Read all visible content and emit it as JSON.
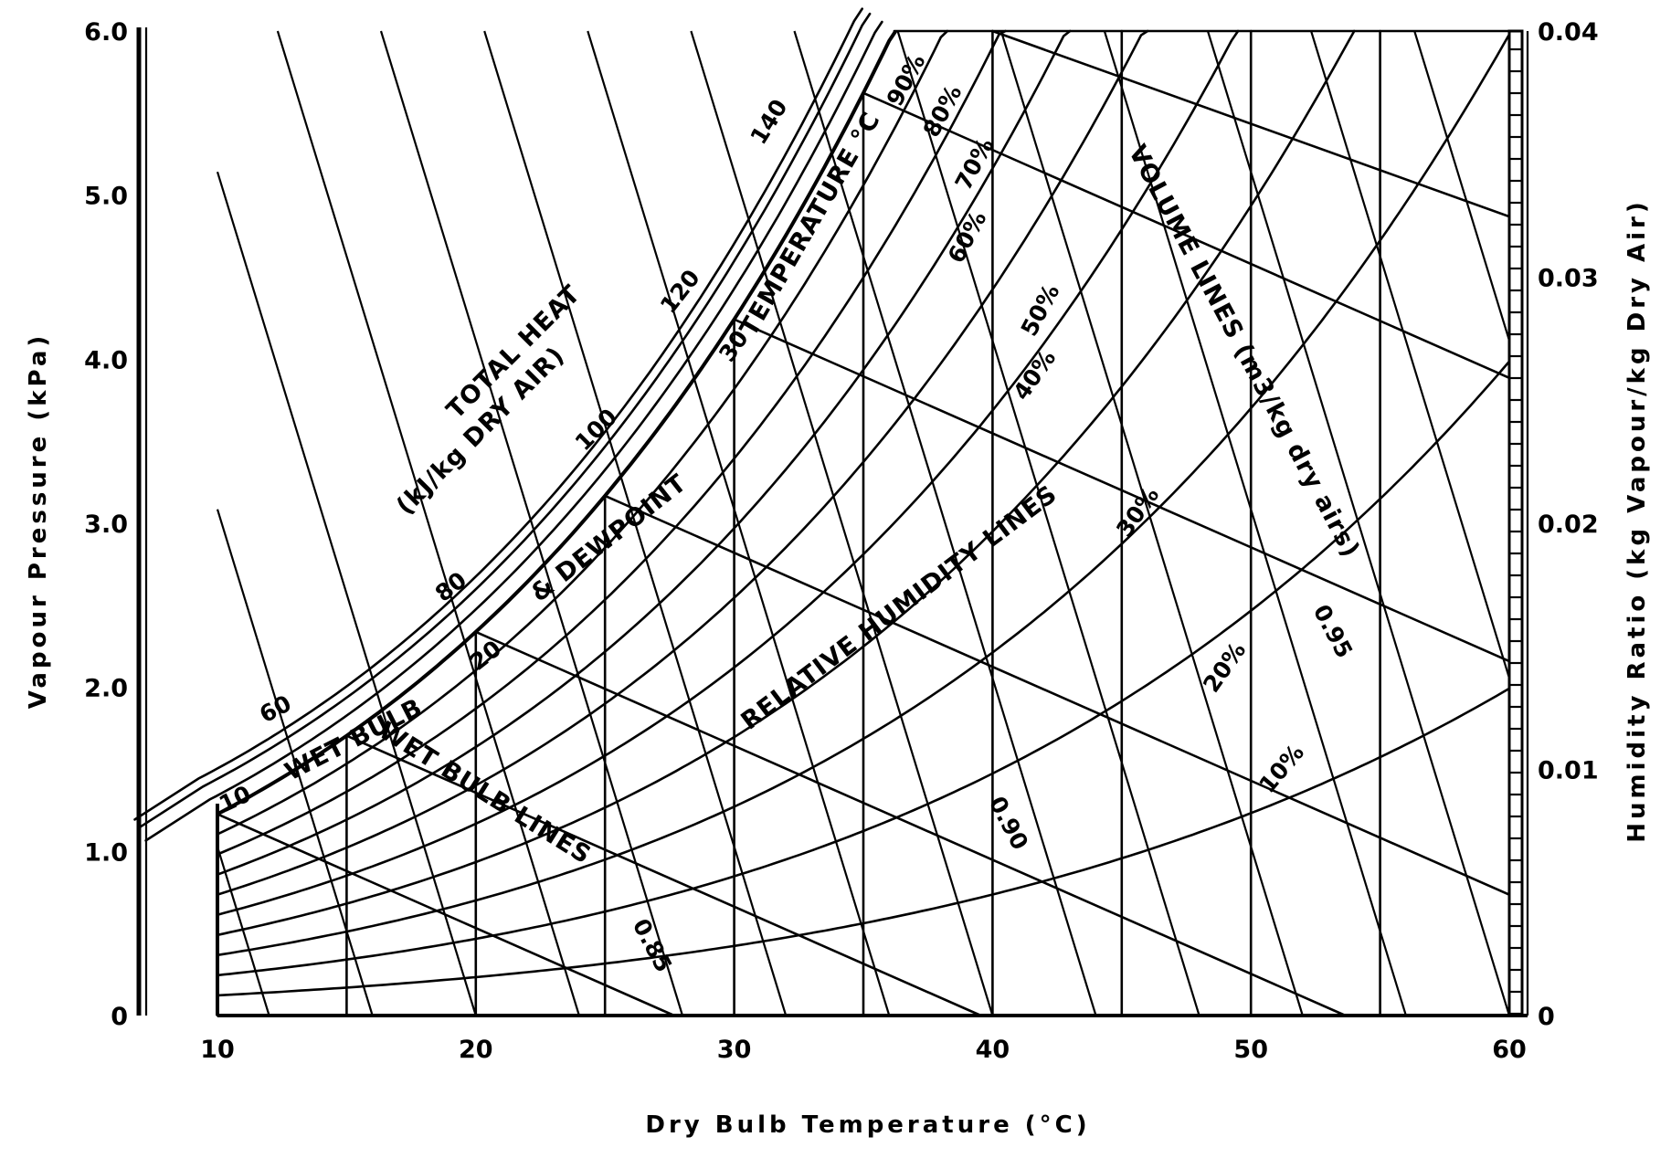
{
  "chart_data": {
    "type": "psychrometric",
    "xlabel": "Dry Bulb Temperature (°C)",
    "ylabel_left": "Vapour Pressure (kPa)",
    "ylabel_right": "Humidity Ratio (kg Vapour/kg Dry Air)",
    "x_ticks": [
      "10",
      "20",
      "30",
      "40",
      "50",
      "60"
    ],
    "x_range": [
      10,
      60
    ],
    "vp_ticks": [
      "0",
      "1.0",
      "2.0",
      "3.0",
      "4.0",
      "5.0",
      "6.0"
    ],
    "vp_range": [
      0,
      6
    ],
    "hr_ticks": [
      "0",
      "0.01",
      "0.02",
      "0.03",
      "0.04"
    ],
    "hr_range": [
      0,
      0.04
    ],
    "relative_humidity_curves": [
      10,
      20,
      30,
      40,
      50,
      60,
      70,
      80,
      90,
      100
    ],
    "relative_humidity_labels": [
      "10%",
      "20%",
      "30%",
      "40%",
      "50%",
      "60%",
      "70%",
      "80%",
      "90%"
    ],
    "dry_bulb_lines": [
      10,
      15,
      20,
      25,
      30,
      35,
      40,
      45,
      50,
      55
    ],
    "wet_bulb_lines": [
      10,
      15,
      20,
      25,
      30,
      35,
      40
    ],
    "wet_bulb_scale_labels": [
      "10",
      "20",
      "30"
    ],
    "total_heat_labels": [
      "60",
      "80",
      "100",
      "120",
      "140"
    ],
    "volume_line_labels": [
      "0.85",
      "0.90",
      "0.95"
    ],
    "annotations": {
      "total_heat_1": "TOTAL HEAT",
      "total_heat_2": "(kJ/kg DRY AIR)",
      "wet_bulb_scale": "WET BULB",
      "dewpoint_scale": "& DEWPOINT",
      "temperature_scale": "TEMPERATURE °C",
      "wet_bulb_lines": "WET BULB LINES",
      "rh_lines": "RELATIVE HUMIDITY LINES",
      "volume_lines": "VOLUME LINES (m3/kg dry airs)"
    }
  }
}
